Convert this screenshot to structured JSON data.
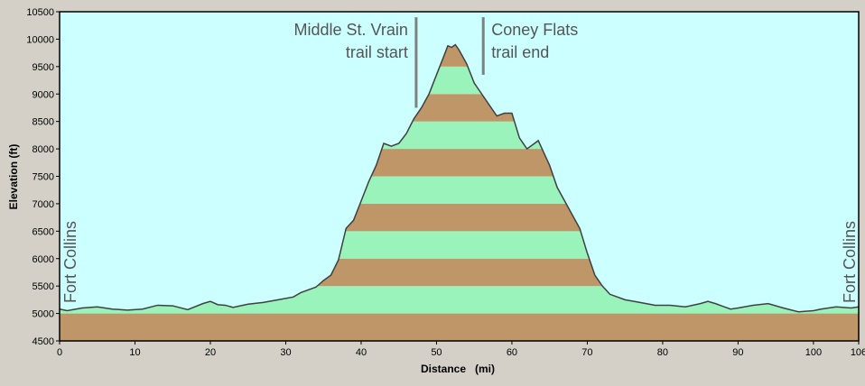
{
  "chart_data": {
    "type": "area",
    "xlabel": "Distance   (mi)",
    "ylabel": "Elevation (ft)",
    "xlim": [
      0,
      106
    ],
    "ylim": [
      4500,
      10500
    ],
    "x_ticks": [
      0,
      10,
      20,
      30,
      40,
      50,
      60,
      70,
      80,
      90,
      100,
      106
    ],
    "y_ticks": [
      4500,
      5000,
      5500,
      6000,
      6500,
      7000,
      7500,
      8000,
      8500,
      9000,
      9500,
      10000,
      10500
    ],
    "band_step": 500,
    "grid": false,
    "colors": {
      "background": "#ccffff",
      "band_brown": "#bf9668",
      "band_green": "#99f3bb",
      "outline": "#404040",
      "marker": "#808080",
      "frame": "#d4d0c8"
    },
    "series": [
      {
        "x": [
          0,
          1,
          3,
          5,
          7,
          9,
          11,
          13,
          15,
          17,
          19,
          20,
          21,
          22,
          23,
          25,
          27,
          29,
          31,
          32,
          34,
          35,
          36,
          37,
          38,
          39,
          40,
          41,
          42,
          43,
          44,
          45,
          46,
          47,
          48,
          49,
          50,
          51,
          51.5,
          52,
          52.5,
          53,
          54,
          55,
          56,
          57,
          58,
          59,
          60,
          61,
          62,
          63,
          63.5,
          64,
          65,
          66,
          67,
          68,
          69,
          70,
          71,
          72,
          73,
          75,
          77,
          79,
          81,
          83,
          85,
          86,
          87,
          88,
          89,
          90,
          92,
          94,
          96,
          98,
          100,
          101,
          103,
          105,
          106
        ],
        "y": [
          5080,
          5050,
          5100,
          5120,
          5080,
          5060,
          5080,
          5150,
          5140,
          5070,
          5180,
          5220,
          5160,
          5150,
          5110,
          5170,
          5200,
          5250,
          5300,
          5380,
          5480,
          5600,
          5700,
          5980,
          6550,
          6700,
          7050,
          7400,
          7700,
          8100,
          8050,
          8100,
          8280,
          8550,
          8750,
          9000,
          9350,
          9700,
          9880,
          9850,
          9900,
          9800,
          9550,
          9200,
          9000,
          8800,
          8600,
          8650,
          8650,
          8200,
          8000,
          8100,
          8150,
          8000,
          7700,
          7300,
          7050,
          6800,
          6550,
          6100,
          5700,
          5500,
          5350,
          5250,
          5200,
          5150,
          5150,
          5120,
          5180,
          5220,
          5180,
          5130,
          5080,
          5100,
          5150,
          5180,
          5100,
          5030,
          5050,
          5080,
          5120,
          5100,
          5120
        ]
      }
    ],
    "annotations": [
      {
        "text_lines": [
          "Middle St. Vrain",
          "trail start"
        ],
        "x": 47.3,
        "y_top": 10400,
        "y_bottom": 8750,
        "align": "right"
      },
      {
        "text_lines": [
          "Coney Flats",
          "trail end"
        ],
        "x": 56.2,
        "y_top": 10400,
        "y_bottom": 9350,
        "align": "left"
      }
    ],
    "end_labels": {
      "left": "Fort Collins",
      "right": "Fort Collins"
    }
  }
}
